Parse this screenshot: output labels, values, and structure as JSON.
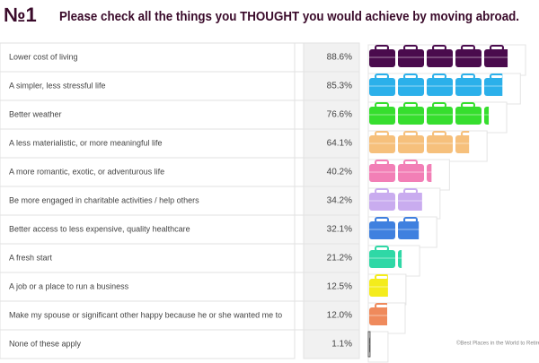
{
  "chart_data": {
    "type": "bar",
    "number": "№1",
    "title": "Please check all the things you THOUGHT you would achieve by moving abroad.",
    "categories": [
      "Lower cost of living",
      "A simpler, less stressful life",
      "Better weather",
      "A less materialistic, or more meaningful life",
      "A more romantic, exotic, or adventurous life",
      "Be more engaged in charitable activities / help others",
      "Better access to less expensive, quality healthcare",
      "A fresh start",
      "A job or a place to run a business",
      "Make my spouse or significant other happy because he or she wanted me to",
      "None of these apply"
    ],
    "values": [
      88.6,
      85.3,
      76.6,
      64.1,
      40.2,
      34.2,
      32.1,
      21.2,
      12.5,
      12.0,
      1.1
    ],
    "value_labels": [
      "88.6%",
      "85.3%",
      "76.6%",
      "64.1%",
      "40.2%",
      "34.2%",
      "32.1%",
      "21.2%",
      "12.5%",
      "12.0%",
      "1.1%"
    ],
    "colors": [
      "#4a0b4d",
      "#2bb0ea",
      "#36de2e",
      "#f6c07c",
      "#f27fb6",
      "#c9acef",
      "#3f80df",
      "#2fd8a6",
      "#f4ec1c",
      "#ef8a5c",
      "#555555"
    ],
    "xlim": [
      0,
      100
    ],
    "credit": "©Best Places in the World to Retire"
  }
}
